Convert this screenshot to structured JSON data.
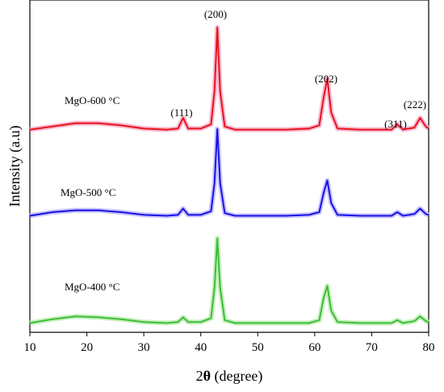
{
  "chart_data": {
    "type": "line",
    "xlabel_prefix": "2",
    "xlabel_symbol": "θ",
    "xlabel_suffix": " (degree)",
    "ylabel": "Intensity (a.u)",
    "xlim": [
      10,
      80
    ],
    "xticks": [
      "10",
      "20",
      "30",
      "40",
      "50",
      "60",
      "70",
      "80"
    ],
    "grid": false,
    "series": [
      {
        "name": "MgO-600 °C",
        "color": "#e8141b",
        "shadow_color": "#f5a6c6",
        "points": [
          [
            10,
            0.04
          ],
          [
            14,
            0.07
          ],
          [
            18,
            0.1
          ],
          [
            22,
            0.1
          ],
          [
            26,
            0.08
          ],
          [
            30,
            0.05
          ],
          [
            34,
            0.04
          ],
          [
            36,
            0.05
          ],
          [
            36.9,
            0.15
          ],
          [
            37.8,
            0.05
          ],
          [
            40,
            0.05
          ],
          [
            41.8,
            0.09
          ],
          [
            42.4,
            0.4
          ],
          [
            42.9,
            1.0
          ],
          [
            43.4,
            0.4
          ],
          [
            44.2,
            0.07
          ],
          [
            46,
            0.04
          ],
          [
            50,
            0.04
          ],
          [
            55,
            0.04
          ],
          [
            59,
            0.05
          ],
          [
            60.8,
            0.08
          ],
          [
            61.6,
            0.35
          ],
          [
            62.2,
            0.52
          ],
          [
            62.9,
            0.2
          ],
          [
            64,
            0.05
          ],
          [
            68,
            0.04
          ],
          [
            73.5,
            0.04
          ],
          [
            74.5,
            0.09
          ],
          [
            75.5,
            0.04
          ],
          [
            77.5,
            0.06
          ],
          [
            78.5,
            0.15
          ],
          [
            79.5,
            0.07
          ],
          [
            80,
            0.05
          ]
        ]
      },
      {
        "name": "MgO-500 °C",
        "color": "#1a10e6",
        "shadow_color": "#b9b4ff",
        "points": [
          [
            10,
            0.04
          ],
          [
            14,
            0.08
          ],
          [
            18,
            0.1
          ],
          [
            22,
            0.1
          ],
          [
            26,
            0.08
          ],
          [
            30,
            0.05
          ],
          [
            34,
            0.04
          ],
          [
            36,
            0.05
          ],
          [
            36.9,
            0.12
          ],
          [
            37.8,
            0.05
          ],
          [
            40,
            0.05
          ],
          [
            41.8,
            0.09
          ],
          [
            42.4,
            0.4
          ],
          [
            42.9,
            1.0
          ],
          [
            43.4,
            0.4
          ],
          [
            44.2,
            0.07
          ],
          [
            46,
            0.04
          ],
          [
            50,
            0.04
          ],
          [
            55,
            0.04
          ],
          [
            59,
            0.05
          ],
          [
            60.8,
            0.08
          ],
          [
            61.6,
            0.3
          ],
          [
            62.2,
            0.43
          ],
          [
            62.9,
            0.18
          ],
          [
            64,
            0.05
          ],
          [
            68,
            0.04
          ],
          [
            73.5,
            0.04
          ],
          [
            74.5,
            0.08
          ],
          [
            75.5,
            0.04
          ],
          [
            77.5,
            0.06
          ],
          [
            78.5,
            0.12
          ],
          [
            79.5,
            0.06
          ],
          [
            80,
            0.05
          ]
        ]
      },
      {
        "name": "MgO-400 °C",
        "color": "#3dbd3a",
        "shadow_color": "#b8ecaa",
        "points": [
          [
            10,
            0.03
          ],
          [
            14,
            0.07
          ],
          [
            18,
            0.1
          ],
          [
            22,
            0.09
          ],
          [
            26,
            0.07
          ],
          [
            30,
            0.04
          ],
          [
            34,
            0.03
          ],
          [
            36,
            0.04
          ],
          [
            36.9,
            0.09
          ],
          [
            37.8,
            0.04
          ],
          [
            40,
            0.04
          ],
          [
            41.8,
            0.08
          ],
          [
            42.4,
            0.4
          ],
          [
            42.9,
            0.92
          ],
          [
            43.4,
            0.4
          ],
          [
            44.2,
            0.06
          ],
          [
            46,
            0.03
          ],
          [
            50,
            0.03
          ],
          [
            55,
            0.03
          ],
          [
            59,
            0.03
          ],
          [
            60.8,
            0.06
          ],
          [
            61.6,
            0.3
          ],
          [
            62.2,
            0.42
          ],
          [
            62.9,
            0.16
          ],
          [
            64,
            0.04
          ],
          [
            68,
            0.03
          ],
          [
            73.5,
            0.03
          ],
          [
            74.5,
            0.06
          ],
          [
            75.5,
            0.03
          ],
          [
            77.5,
            0.05
          ],
          [
            78.5,
            0.1
          ],
          [
            79.5,
            0.05
          ],
          [
            80,
            0.04
          ]
        ]
      }
    ],
    "annotations": [
      {
        "text": "(111)",
        "x": 37
      },
      {
        "text": "(200)",
        "x": 42.9
      },
      {
        "text": "(202)",
        "x": 62.2
      },
      {
        "text": "(311)",
        "x": 74.5
      },
      {
        "text": "(222)",
        "x": 78.8
      }
    ]
  }
}
